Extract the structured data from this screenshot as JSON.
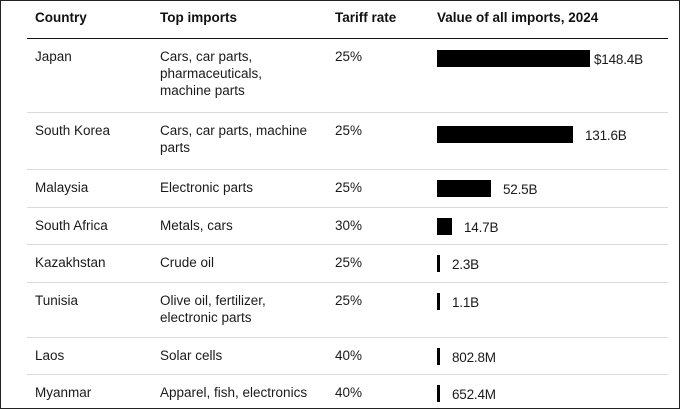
{
  "chart_data": {
    "type": "table",
    "columns": [
      "Country",
      "Top imports",
      "Tariff rate",
      "Value of all imports, 2024"
    ],
    "units": "USD",
    "rows": [
      {
        "country": "Japan",
        "imports": [
          "Cars, car parts,",
          "pharmaceuticals,",
          "machine parts"
        ],
        "tariff": "25%",
        "value": 148.4,
        "label": "$148.4B"
      },
      {
        "country": "South Korea",
        "imports": [
          "Cars, car parts, machine",
          "parts"
        ],
        "tariff": "25%",
        "value": 131.6,
        "label": "131.6B"
      },
      {
        "country": "Malaysia",
        "imports": [
          "Electronic parts"
        ],
        "tariff": "25%",
        "value": 52.5,
        "label": "52.5B"
      },
      {
        "country": "South Africa",
        "imports": [
          "Metals, cars"
        ],
        "tariff": "30%",
        "value": 14.7,
        "label": "14.7B"
      },
      {
        "country": "Kazakhstan",
        "imports": [
          "Crude oil"
        ],
        "tariff": "25%",
        "value": 2.3,
        "label": "2.3B"
      },
      {
        "country": "Tunisia",
        "imports": [
          "Olive oil, fertilizer,",
          "electronic parts"
        ],
        "tariff": "25%",
        "value": 1.1,
        "label": "1.1B"
      },
      {
        "country": "Laos",
        "imports": [
          "Solar cells"
        ],
        "tariff": "40%",
        "value": 0.8028,
        "label": "802.8M"
      },
      {
        "country": "Myanmar",
        "imports": [
          "Apparel, fish, electronics"
        ],
        "tariff": "40%",
        "value": 0.6524,
        "label": "652.4M"
      }
    ]
  }
}
